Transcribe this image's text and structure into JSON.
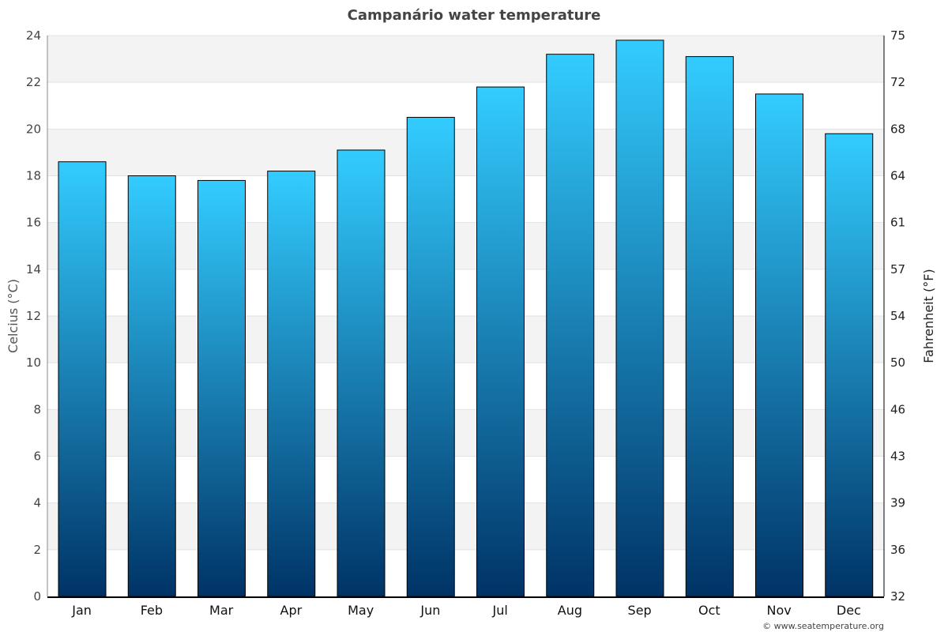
{
  "chart_data": {
    "type": "bar",
    "title": "Campanário water temperature",
    "ylabel": "Celcius (°C)",
    "y2label": "Fahrenheit (°F)",
    "categories": [
      "Jan",
      "Feb",
      "Mar",
      "Apr",
      "May",
      "Jun",
      "Jul",
      "Aug",
      "Sep",
      "Oct",
      "Nov",
      "Dec"
    ],
    "values": [
      18.6,
      18.0,
      17.8,
      18.2,
      19.1,
      20.5,
      21.8,
      23.2,
      23.8,
      23.1,
      21.5,
      19.8
    ],
    "ylim": [
      0,
      24
    ],
    "yticks": [
      0,
      2,
      4,
      6,
      8,
      10,
      12,
      14,
      16,
      18,
      20,
      22,
      24
    ],
    "y2ticks": [
      "32",
      "36",
      "39",
      "43",
      "46",
      "50",
      "54",
      "57",
      "61",
      "64",
      "68",
      "72",
      "75"
    ],
    "grid": true,
    "colors": {
      "bar_top": "#33ccff",
      "bar_bottom": "#003366",
      "band": "#f3f3f3",
      "title": "#444444"
    }
  },
  "footer": "© www.seatemperature.org"
}
